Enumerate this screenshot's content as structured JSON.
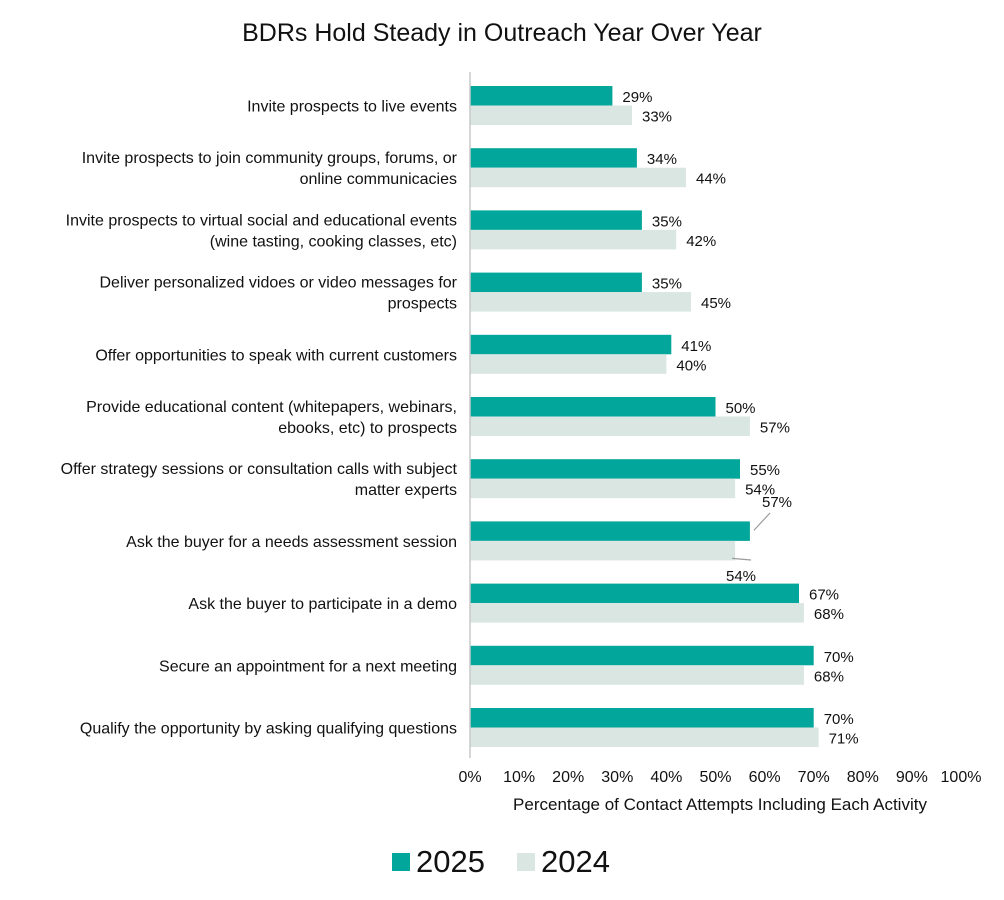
{
  "chart_data": {
    "type": "bar",
    "orientation": "horizontal",
    "title": "BDRs Hold Steady in Outreach Year Over Year",
    "xlabel": "Percentage of Contact Attempts Including Each Activity",
    "ylabel": "",
    "xlim": [
      0,
      100
    ],
    "x_ticks": [
      "0%",
      "10%",
      "20%",
      "30%",
      "40%",
      "50%",
      "60%",
      "70%",
      "80%",
      "90%",
      "100%"
    ],
    "categories": [
      [
        "Invite prospects to live events"
      ],
      [
        "Invite prospects to join community groups, forums, or",
        "online communicacies"
      ],
      [
        "Invite prospects to virtual social and educational events",
        "(wine tasting, cooking classes, etc)"
      ],
      [
        "Deliver personalized vidoes or video messages for",
        "prospects"
      ],
      [
        "Offer opportunities to speak with current customers"
      ],
      [
        "Provide educational content (whitepapers, webinars,",
        "ebooks, etc) to prospects"
      ],
      [
        "Offer strategy sessions or consultation calls with subject",
        "matter experts"
      ],
      [
        "Ask the buyer for a needs assessment session"
      ],
      [
        "Ask the buyer to participate in a demo"
      ],
      [
        "Secure an appointment for a next meeting"
      ],
      [
        "Qualify the opportunity by asking qualifying questions"
      ]
    ],
    "series": [
      {
        "name": "2025",
        "color": "#03a69b",
        "values": [
          29,
          34,
          35,
          35,
          41,
          50,
          55,
          57,
          67,
          70,
          70
        ],
        "labels": [
          "29%",
          "34%",
          "35%",
          "35%",
          "41%",
          "50%",
          "55%",
          "57%",
          "67%",
          "70%",
          "70%"
        ]
      },
      {
        "name": "2024",
        "color": "#d9e6e1",
        "values": [
          33,
          44,
          42,
          45,
          40,
          57,
          54,
          54,
          68,
          68,
          71
        ],
        "labels": [
          "33%",
          "44%",
          "42%",
          "45%",
          "40%",
          "57%",
          "54%",
          "54%",
          "68%",
          "68%",
          "71%"
        ]
      }
    ],
    "grid": false,
    "legend_position": "bottom"
  }
}
